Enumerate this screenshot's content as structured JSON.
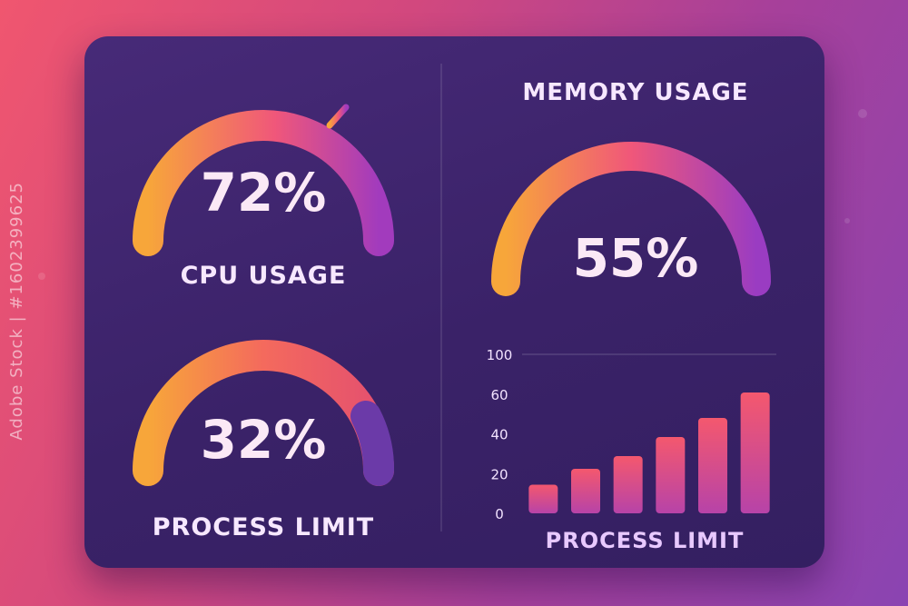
{
  "watermark": "Adobe Stock | #1602399625",
  "colors": {
    "gauge_start": "#f7a63a",
    "gauge_mid": "#f0577a",
    "gauge_end": "#8a3dc9",
    "panel": "#3a2268"
  },
  "gauges": {
    "cpu": {
      "value_text": "72%",
      "label": "CPU USAGE",
      "fraction": 0.72
    },
    "memory": {
      "title": "MEMORY USAGE",
      "value_text": "55%",
      "fraction": 0.55
    },
    "process": {
      "value_text": "32%",
      "label": "PROCESS LIMIT",
      "fraction": 0.32
    }
  },
  "chart_data": {
    "type": "bar",
    "categories": [
      "",
      "",
      "",
      "",
      "",
      ""
    ],
    "values": [
      18,
      28,
      36,
      48,
      60,
      76
    ],
    "ylim": [
      0,
      100
    ],
    "yticks": [
      "0",
      "20",
      "40",
      "60",
      "100"
    ],
    "xlabel": "PROCESS LIMIT",
    "ylabel": "",
    "grid": false
  }
}
